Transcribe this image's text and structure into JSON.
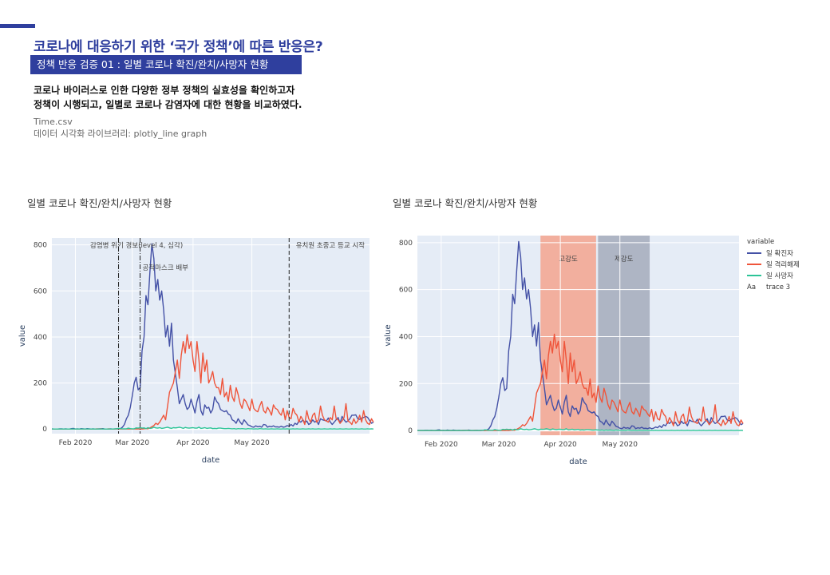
{
  "header": {
    "title": "코로나에 대응하기 위한 ‘국가 정책’에 따른 반응은?",
    "banner": "정책 반응 검증 01 :  일별 코로나 확진/완치/사망자 현황",
    "description_line1": "코로나 바이러스로 인한 다양한 정부 정책의 실효성을 확인하고자",
    "description_line2": "정책이 시행되고, 일별로 코로나 감염자에 대한 현황을 비교하였다.",
    "source_file": "Time.csv",
    "library": "데이터 시각화 라이브러리: plotly_line graph"
  },
  "colors": {
    "accent": "#2f3f9e",
    "confirmed": "#4451a6",
    "released": "#ef553b",
    "deceased": "#2cc497",
    "plot_bg": "#e5ecf6",
    "band_red": "#f4a58e",
    "band_gray": "#a4acbb"
  },
  "chart_data": [
    {
      "type": "line",
      "title": "일별 코로나 확진/완치/사망자 현황",
      "xlabel": "date",
      "ylabel": "value",
      "x_range": [
        "2020-01-20",
        "2020-06-30"
      ],
      "ylim": [
        -20,
        830
      ],
      "yticks": [
        0,
        200,
        400,
        600,
        800
      ],
      "xticks": [
        {
          "date": "2020-02-01",
          "label": "Feb 2020"
        },
        {
          "date": "2020-03-01",
          "label": "Mar 2020"
        },
        {
          "date": "2020-04-01",
          "label": "Apr 2020"
        },
        {
          "date": "2020-05-01",
          "label": "May 2020"
        }
      ],
      "vlines": [
        {
          "date": "2020-02-23",
          "label": "감염병 위기 경보(level 4, 심각)",
          "style": "dashdot"
        },
        {
          "date": "2020-03-05",
          "label": "공적마스크 배부",
          "style": "dashdot"
        },
        {
          "date": "2020-05-20",
          "label": "유치원 초중고 등교 시작",
          "style": "dash"
        }
      ],
      "legend": false,
      "grid": true,
      "series": [
        {
          "name": "일 확진자",
          "color": "#4451a6",
          "x_start": "2020-01-20",
          "values": [
            1,
            0,
            0,
            0,
            1,
            1,
            0,
            1,
            0,
            0,
            2,
            3,
            0,
            1,
            0,
            2,
            1,
            0,
            2,
            1,
            0,
            1,
            0,
            0,
            1,
            1,
            2,
            0,
            0,
            0,
            1,
            0,
            0,
            1,
            0,
            2,
            8,
            20,
            45,
            60,
            95,
            143,
            200,
            225,
            170,
            180,
            340,
            400,
            580,
            540,
            680,
            805,
            740,
            600,
            650,
            560,
            600,
            520,
            400,
            450,
            360,
            460,
            300,
            240,
            180,
            110,
            130,
            150,
            110,
            85,
            95,
            130,
            100,
            70,
            120,
            150,
            80,
            60,
            105,
            90,
            95,
            70,
            85,
            140,
            120,
            110,
            85,
            80,
            75,
            80,
            65,
            60,
            40,
            35,
            25,
            45,
            30,
            20,
            40,
            30,
            18,
            15,
            10,
            8,
            14,
            10,
            12,
            8,
            20,
            18,
            8,
            12,
            10,
            14,
            9,
            10,
            8,
            12,
            8,
            10,
            15,
            12,
            20,
            13,
            25,
            20,
            35,
            30,
            40,
            28,
            35,
            20,
            25,
            40,
            30,
            35,
            20,
            45,
            40,
            38,
            35,
            48,
            30,
            20,
            30,
            40,
            50,
            25,
            55,
            40,
            30,
            35,
            45,
            60,
            60,
            62,
            45,
            42,
            48,
            50,
            55,
            51,
            38,
            25,
            30
          ]
        },
        {
          "name": "일 격리해제",
          "color": "#ef553b",
          "x_start": "2020-01-20",
          "values": [
            0,
            0,
            0,
            0,
            0,
            0,
            0,
            0,
            0,
            0,
            0,
            0,
            0,
            0,
            0,
            0,
            0,
            0,
            0,
            0,
            0,
            0,
            0,
            1,
            0,
            1,
            0,
            0,
            0,
            1,
            0,
            0,
            0,
            1,
            0,
            0,
            0,
            0,
            0,
            0,
            0,
            0,
            0,
            0,
            0,
            0,
            0,
            1,
            2,
            1,
            5,
            10,
            15,
            25,
            20,
            30,
            45,
            60,
            40,
            100,
            160,
            180,
            200,
            250,
            300,
            220,
            320,
            380,
            330,
            410,
            350,
            380,
            300,
            250,
            380,
            300,
            200,
            330,
            250,
            300,
            200,
            220,
            250,
            200,
            180,
            180,
            150,
            220,
            140,
            160,
            120,
            190,
            140,
            120,
            180,
            150,
            110,
            90,
            130,
            120,
            100,
            80,
            130,
            90,
            80,
            75,
            100,
            120,
            80,
            70,
            95,
            80,
            60,
            105,
            90,
            85,
            70,
            60,
            90,
            40,
            80,
            50,
            45,
            90,
            70,
            60,
            30,
            55,
            40,
            20,
            80,
            45,
            30,
            60,
            70,
            30,
            40,
            100,
            60,
            40,
            35,
            30,
            50,
            40,
            100,
            45,
            40,
            25,
            35,
            50,
            110,
            35,
            30,
            20,
            45,
            25,
            35,
            60,
            30,
            80,
            40,
            25,
            20,
            45,
            30
          ]
        },
        {
          "name": "일 사망자",
          "color": "#2cc497",
          "x_start": "2020-01-20",
          "values": [
            0,
            0,
            0,
            0,
            0,
            0,
            0,
            0,
            0,
            0,
            0,
            0,
            0,
            0,
            0,
            0,
            0,
            0,
            0,
            0,
            0,
            0,
            0,
            0,
            0,
            0,
            0,
            0,
            0,
            0,
            0,
            0,
            1,
            1,
            3,
            2,
            1,
            1,
            1,
            4,
            2,
            1,
            1,
            5,
            4,
            6,
            4,
            5,
            2,
            6,
            3,
            4,
            8,
            5,
            4,
            6,
            3,
            4,
            6,
            8,
            5,
            3,
            6,
            5,
            6,
            8,
            6,
            3,
            7,
            5,
            4,
            5,
            6,
            4,
            4,
            8,
            3,
            4,
            6,
            3,
            4,
            5,
            2,
            3,
            2,
            4,
            4,
            3,
            2,
            2,
            3,
            2,
            1,
            2,
            0,
            2,
            1,
            2,
            1,
            0,
            2,
            1,
            1,
            0,
            1,
            0,
            2,
            1,
            0,
            1,
            0,
            0,
            1,
            0,
            0,
            1,
            0,
            0,
            1,
            0,
            1,
            0,
            0,
            1,
            0,
            1,
            0,
            0,
            1,
            0,
            0,
            1,
            0,
            1,
            0,
            0,
            1,
            0,
            0,
            1,
            0,
            0,
            1,
            0,
            1,
            0,
            0,
            1,
            0,
            0,
            1,
            0,
            0,
            1,
            0,
            1,
            0,
            0,
            1,
            0,
            0,
            1,
            0,
            1,
            0
          ]
        }
      ]
    },
    {
      "type": "line",
      "title": "일별 코로나 확진/완치/사망자 현황",
      "xlabel": "date",
      "ylabel": "value",
      "x_range": [
        "2020-01-20",
        "2020-06-30"
      ],
      "ylim": [
        -20,
        830
      ],
      "yticks": [
        0,
        200,
        400,
        600,
        800
      ],
      "xticks": [
        {
          "date": "2020-02-01",
          "label": "Feb 2020"
        },
        {
          "date": "2020-03-01",
          "label": "Mar 2020"
        },
        {
          "date": "2020-04-01",
          "label": "Apr 2020"
        },
        {
          "date": "2020-05-01",
          "label": "May 2020"
        }
      ],
      "bands": [
        {
          "start": "2020-03-22",
          "end": "2020-04-19",
          "label": "고강도",
          "color": "#f4a58e"
        },
        {
          "start": "2020-04-20",
          "end": "2020-05-16",
          "label": "제강도",
          "color": "#a4acbb"
        }
      ],
      "legend": true,
      "legend_title": "variable",
      "legend_position": "right",
      "legend_entries": [
        {
          "label": "일 확진자",
          "color": "#4451a6",
          "kind": "line"
        },
        {
          "label": "일 격리해제",
          "color": "#ef553b",
          "kind": "line"
        },
        {
          "label": "일 사망자",
          "color": "#2cc497",
          "kind": "line"
        },
        {
          "label": "trace 3",
          "color": "#777777",
          "kind": "text"
        }
      ],
      "grid": true,
      "series_ref": "same as chart 1"
    }
  ]
}
